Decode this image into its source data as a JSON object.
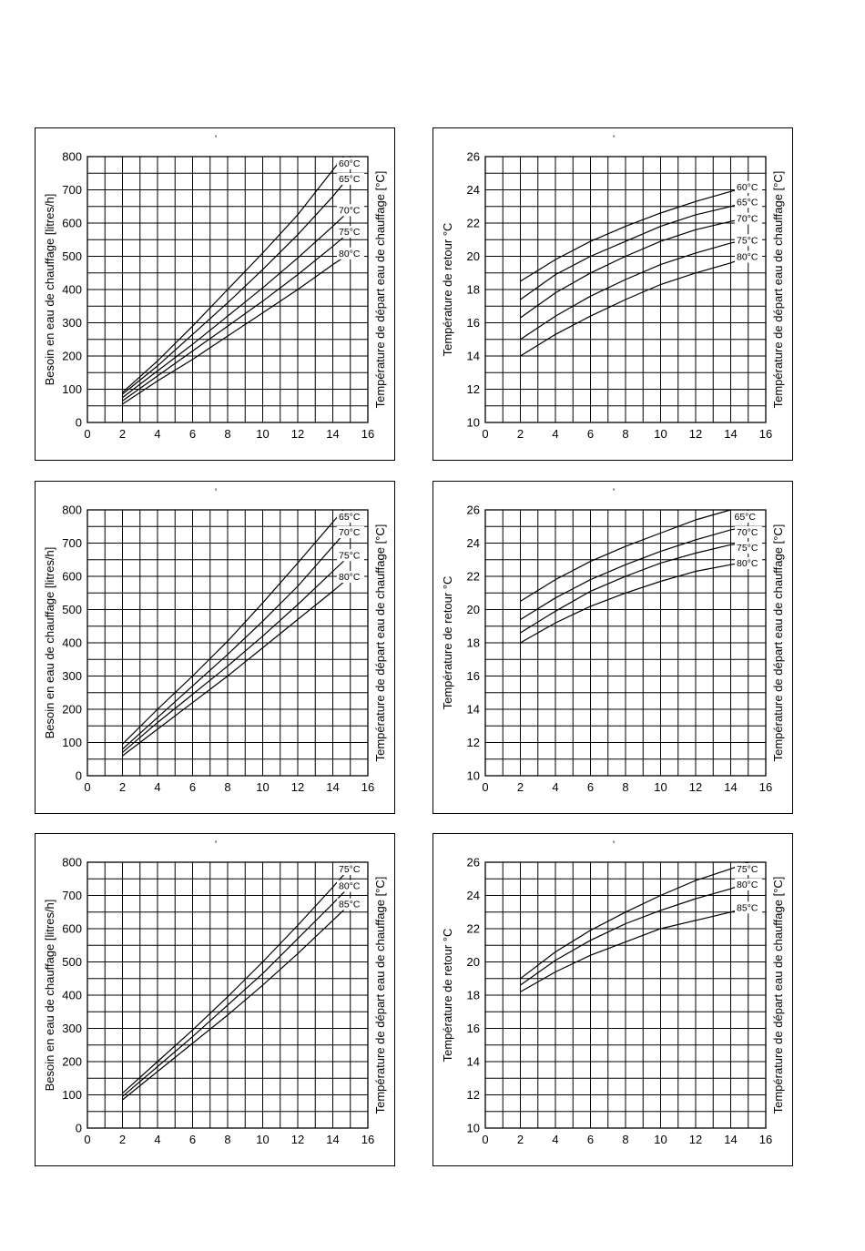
{
  "chart_data": [
    {
      "type": "line",
      "mark": "'",
      "ylabel": "Besoin en eau de chauffage [litres/h]",
      "ylabel2": "Température de départ eau de chauffage [°C]",
      "xlim": [
        0,
        16
      ],
      "ylim": [
        0,
        800
      ],
      "xticks": [
        0,
        2,
        4,
        6,
        8,
        10,
        12,
        14,
        16
      ],
      "yticks": [
        0,
        100,
        200,
        300,
        400,
        500,
        600,
        700,
        800
      ],
      "grid": true,
      "series": [
        {
          "name": "60°C",
          "x": [
            2,
            4,
            6,
            8,
            10,
            12,
            14.6
          ],
          "y": [
            90,
            185,
            290,
            400,
            510,
            625,
            800
          ]
        },
        {
          "name": "65°C",
          "x": [
            2,
            4,
            6,
            8,
            10,
            12,
            14,
            15
          ],
          "y": [
            85,
            170,
            265,
            360,
            460,
            565,
            680,
            745
          ]
        },
        {
          "name": "70°C",
          "x": [
            2,
            4,
            6,
            8,
            10,
            12,
            14,
            15
          ],
          "y": [
            75,
            155,
            235,
            320,
            405,
            495,
            590,
            640
          ]
        },
        {
          "name": "75°C",
          "x": [
            2,
            4,
            6,
            8,
            10,
            12,
            14,
            15
          ],
          "y": [
            65,
            140,
            215,
            290,
            365,
            445,
            530,
            575
          ]
        },
        {
          "name": "80°C",
          "x": [
            2,
            4,
            6,
            8,
            10,
            12,
            14,
            15
          ],
          "y": [
            55,
            125,
            190,
            260,
            330,
            400,
            475,
            510
          ]
        }
      ]
    },
    {
      "type": "line",
      "mark": "'",
      "ylabel": "Température de retour °C",
      "ylabel2": "Température de départ eau de chauffage [°C]",
      "xlim": [
        0,
        16
      ],
      "ylim": [
        10,
        26
      ],
      "xticks": [
        0,
        2,
        4,
        6,
        8,
        10,
        12,
        14,
        16
      ],
      "yticks": [
        10,
        12,
        14,
        16,
        18,
        20,
        22,
        24,
        26
      ],
      "grid": true,
      "series": [
        {
          "name": "60°C",
          "x": [
            2,
            4,
            6,
            8,
            10,
            12,
            14,
            15
          ],
          "y": [
            18.5,
            19.8,
            20.9,
            21.8,
            22.6,
            23.3,
            23.9,
            24.2
          ]
        },
        {
          "name": "65°C",
          "x": [
            2,
            4,
            6,
            8,
            10,
            12,
            14,
            15
          ],
          "y": [
            17.4,
            18.9,
            20.0,
            20.9,
            21.8,
            22.5,
            23.0,
            23.3
          ]
        },
        {
          "name": "70°C",
          "x": [
            2,
            4,
            6,
            8,
            10,
            12,
            14,
            15
          ],
          "y": [
            16.3,
            17.8,
            19.0,
            20.0,
            20.9,
            21.6,
            22.1,
            22.3
          ]
        },
        {
          "name": "75°C",
          "x": [
            2,
            4,
            6,
            8,
            10,
            12,
            14,
            15
          ],
          "y": [
            15.0,
            16.4,
            17.6,
            18.6,
            19.5,
            20.2,
            20.8,
            21.0
          ]
        },
        {
          "name": "80°C",
          "x": [
            2,
            4,
            6,
            8,
            10,
            12,
            14,
            15
          ],
          "y": [
            14.0,
            15.3,
            16.4,
            17.4,
            18.3,
            19.0,
            19.6,
            20.0
          ]
        }
      ]
    },
    {
      "type": "line",
      "mark": "'",
      "ylabel": "Besoin en eau de chauffage [litres/h]",
      "ylabel2": "Température de départ eau de chauffage [°C]",
      "xlim": [
        0,
        16
      ],
      "ylim": [
        0,
        800
      ],
      "xticks": [
        0,
        2,
        4,
        6,
        8,
        10,
        12,
        14,
        16
      ],
      "yticks": [
        0,
        100,
        200,
        300,
        400,
        500,
        600,
        700,
        800
      ],
      "grid": true,
      "series": [
        {
          "name": "65°C",
          "x": [
            2,
            4,
            6,
            8,
            10,
            12,
            14.6
          ],
          "y": [
            95,
            200,
            300,
            405,
            520,
            640,
            800
          ]
        },
        {
          "name": "70°C",
          "x": [
            2,
            4,
            6,
            8,
            10,
            12,
            14,
            15
          ],
          "y": [
            80,
            175,
            270,
            365,
            465,
            570,
            690,
            750
          ]
        },
        {
          "name": "75°C",
          "x": [
            2,
            4,
            6,
            8,
            10,
            12,
            14,
            15
          ],
          "y": [
            70,
            160,
            245,
            330,
            420,
            515,
            615,
            665
          ]
        },
        {
          "name": "80°C",
          "x": [
            2,
            4,
            6,
            8,
            10,
            12,
            14,
            15
          ],
          "y": [
            60,
            140,
            220,
            300,
            385,
            470,
            555,
            600
          ]
        }
      ]
    },
    {
      "type": "line",
      "mark": "'",
      "ylabel": "Température de retour °C",
      "ylabel2": "Température de départ eau de chauffage [°C]",
      "xlim": [
        0,
        16
      ],
      "ylim": [
        10,
        26
      ],
      "xticks": [
        0,
        2,
        4,
        6,
        8,
        10,
        12,
        14,
        16
      ],
      "yticks": [
        10,
        12,
        14,
        16,
        18,
        20,
        22,
        24,
        26
      ],
      "grid": true,
      "series": [
        {
          "name": "65°C",
          "x": [
            2,
            4,
            6,
            8,
            10,
            12,
            14
          ],
          "y": [
            20.5,
            21.8,
            22.9,
            23.8,
            24.6,
            25.4,
            26.0
          ]
        },
        {
          "name": "70°C",
          "x": [
            2,
            4,
            6,
            8,
            10,
            12,
            14,
            15
          ],
          "y": [
            19.4,
            20.7,
            21.8,
            22.7,
            23.5,
            24.2,
            24.8,
            25.0
          ]
        },
        {
          "name": "75°C",
          "x": [
            2,
            4,
            6,
            8,
            10,
            12,
            14,
            15
          ],
          "y": [
            18.6,
            19.9,
            21.1,
            22.0,
            22.8,
            23.4,
            23.9,
            24.0
          ]
        },
        {
          "name": "80°C",
          "x": [
            2,
            4,
            6,
            8,
            10,
            12,
            14,
            15
          ],
          "y": [
            18.0,
            19.2,
            20.2,
            21.0,
            21.7,
            22.3,
            22.7,
            22.9
          ]
        }
      ]
    },
    {
      "type": "line",
      "mark": "'",
      "ylabel": "Besoin en eau de chauffage [litres/h]",
      "ylabel2": "Température de départ eau de chauffage [°C]",
      "xlim": [
        0,
        16
      ],
      "ylim": [
        0,
        800
      ],
      "xticks": [
        0,
        2,
        4,
        6,
        8,
        10,
        12,
        14,
        16
      ],
      "yticks": [
        0,
        100,
        200,
        300,
        400,
        500,
        600,
        700,
        800
      ],
      "grid": true,
      "series": [
        {
          "name": "75°C",
          "x": [
            2,
            4,
            6,
            8,
            10,
            12,
            14,
            15
          ],
          "y": [
            105,
            200,
            295,
            395,
            500,
            610,
            725,
            785
          ]
        },
        {
          "name": "80°C",
          "x": [
            2,
            4,
            6,
            8,
            10,
            12,
            14,
            15
          ],
          "y": [
            95,
            185,
            275,
            370,
            465,
            570,
            675,
            730
          ]
        },
        {
          "name": "85°C",
          "x": [
            2,
            4,
            6,
            8,
            10,
            12,
            14,
            15
          ],
          "y": [
            85,
            170,
            255,
            340,
            430,
            525,
            625,
            675
          ]
        }
      ]
    },
    {
      "type": "line",
      "mark": "'",
      "ylabel": "Température de retour °C",
      "ylabel2": "Température de départ eau de chauffage [°C]",
      "xlim": [
        0,
        16
      ],
      "ylim": [
        10,
        26
      ],
      "xticks": [
        0,
        2,
        4,
        6,
        8,
        10,
        12,
        14,
        16
      ],
      "yticks": [
        10,
        12,
        14,
        16,
        18,
        20,
        22,
        24,
        26
      ],
      "grid": true,
      "series": [
        {
          "name": "75°C",
          "x": [
            2,
            4,
            6,
            8,
            10,
            12,
            14,
            15
          ],
          "y": [
            19.0,
            20.6,
            21.9,
            23.0,
            24.0,
            24.9,
            25.6,
            26.0
          ]
        },
        {
          "name": "80°C",
          "x": [
            2,
            4,
            6,
            8,
            10,
            12,
            14,
            15
          ],
          "y": [
            18.6,
            20.1,
            21.3,
            22.3,
            23.1,
            23.8,
            24.4,
            24.8
          ]
        },
        {
          "name": "85°C",
          "x": [
            2,
            4,
            6,
            8,
            10,
            12,
            14,
            15
          ],
          "y": [
            18.2,
            19.4,
            20.4,
            21.2,
            22.0,
            22.5,
            23.0,
            23.3
          ]
        }
      ]
    }
  ]
}
